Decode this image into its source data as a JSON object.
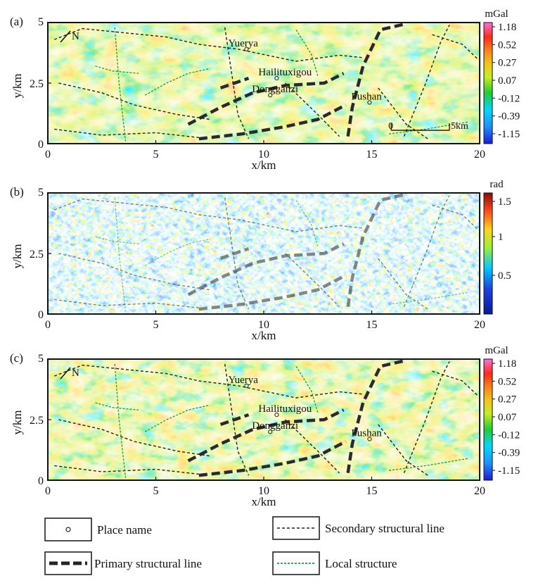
{
  "chart_data": [
    {
      "type": "heatmap",
      "panel_label": "(a)",
      "xlabel": "x/km",
      "ylabel": "y/km",
      "xlim": [
        0,
        20
      ],
      "ylim": [
        0,
        5
      ],
      "x_ticks": [
        "0",
        "5",
        "10",
        "15",
        "20"
      ],
      "y_ticks": [
        "0",
        "2.5",
        "5"
      ],
      "colorbar": {
        "unit": "mGal",
        "ticks": [
          "1.18",
          "0.52",
          "0.27",
          "0.07",
          "-0.12",
          "-0.39",
          "-1.15"
        ]
      },
      "place_names": [
        {
          "name": "Yuerya",
          "x": 9.2,
          "y": 3.9
        },
        {
          "name": "Hailituxigou",
          "x": 10.6,
          "y": 2.7
        },
        {
          "name": "Dongganzi",
          "x": 10.3,
          "y": 2.0
        },
        {
          "name": "Fushan",
          "x": 14.9,
          "y": 1.7
        }
      ],
      "north_label": "N",
      "scale_bar": {
        "start": "0",
        "end": "5km"
      }
    },
    {
      "type": "heatmap",
      "panel_label": "(b)",
      "xlabel": "x/km",
      "ylabel": "y/km",
      "xlim": [
        0,
        20
      ],
      "ylim": [
        0,
        5
      ],
      "x_ticks": [
        "0",
        "5",
        "10",
        "15",
        "20"
      ],
      "y_ticks": [
        "0",
        "2.5",
        "5"
      ],
      "colorbar": {
        "unit": "rad",
        "ticks": [
          "1.5",
          "1",
          "0.5"
        ]
      }
    },
    {
      "type": "heatmap",
      "panel_label": "(c)",
      "xlabel": "x/km",
      "ylabel": "y/km",
      "xlim": [
        0,
        20
      ],
      "ylim": [
        0,
        5
      ],
      "x_ticks": [
        "0",
        "5",
        "10",
        "15",
        "20"
      ],
      "y_ticks": [
        "0",
        "2.5",
        "5"
      ],
      "colorbar": {
        "unit": "mGal",
        "ticks": [
          "1.18",
          "0.52",
          "0.27",
          "0.07",
          "-0.12",
          "-0.39",
          "-1.15"
        ]
      },
      "place_names": [
        {
          "name": "Yuerya",
          "x": 9.2,
          "y": 3.9
        },
        {
          "name": "Hailituxigou",
          "x": 10.6,
          "y": 2.7
        },
        {
          "name": "Dongganzi",
          "x": 10.3,
          "y": 2.0
        },
        {
          "name": "Fushan",
          "x": 14.9,
          "y": 1.7
        }
      ],
      "north_label": "N"
    }
  ],
  "legend": {
    "place_name": "Place name",
    "secondary": "Secondary structural line",
    "primary": "Primary structural line",
    "local": "Local structure"
  },
  "colors": {
    "gravity_scale": [
      "#1b1bd6",
      "#1e90ff",
      "#00d8ff",
      "#22cc33",
      "#a8e620",
      "#f2e21a",
      "#ff9a1a",
      "#ff3a1a",
      "#ff6fd8"
    ],
    "phase_scale": [
      "#0a1a9a",
      "#1a3fe0",
      "#00c8ff",
      "#9ef03a",
      "#ffd21a",
      "#ff5a1a",
      "#8a0a0a"
    ]
  }
}
